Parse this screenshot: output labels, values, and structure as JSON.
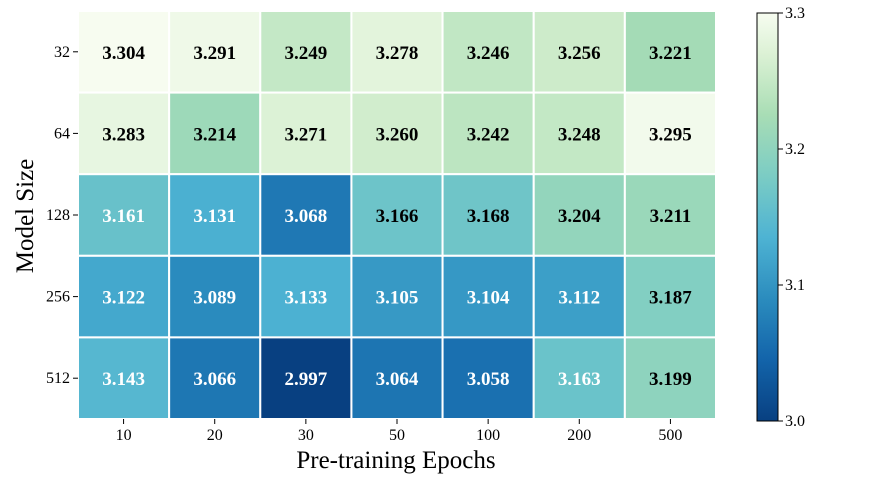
{
  "chart_data": {
    "type": "heatmap",
    "xlabel": "Pre-training Epochs",
    "ylabel": "Model Size",
    "x_categories": [
      "10",
      "20",
      "30",
      "50",
      "100",
      "200",
      "500"
    ],
    "y_categories": [
      "32",
      "64",
      "128",
      "256",
      "512"
    ],
    "values": [
      [
        3.304,
        3.291,
        3.249,
        3.278,
        3.246,
        3.256,
        3.221
      ],
      [
        3.283,
        3.214,
        3.271,
        3.26,
        3.242,
        3.248,
        3.295
      ],
      [
        3.161,
        3.131,
        3.068,
        3.166,
        3.168,
        3.204,
        3.211
      ],
      [
        3.122,
        3.089,
        3.133,
        3.105,
        3.104,
        3.112,
        3.187
      ],
      [
        3.143,
        3.066,
        2.997,
        3.064,
        3.058,
        3.163,
        3.199
      ]
    ],
    "colorbar": {
      "range": [
        3.0,
        3.3
      ],
      "ticks": [
        "3.0",
        "3.1",
        "3.2",
        "3.3"
      ],
      "colormap": "GnBu"
    }
  }
}
